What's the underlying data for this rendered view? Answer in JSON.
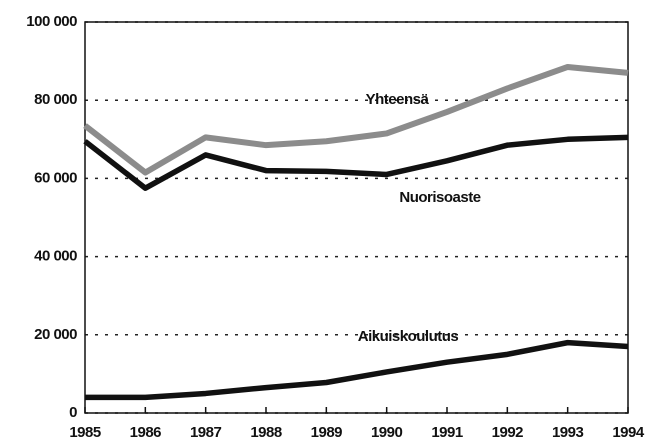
{
  "chart_data": {
    "type": "line",
    "x": [
      1985,
      1986,
      1987,
      1988,
      1989,
      1990,
      1991,
      1992,
      1993,
      1994
    ],
    "series": [
      {
        "name": "Yhteensä",
        "color": "#8c8c8c",
        "values": [
          73500,
          61500,
          70500,
          68500,
          69500,
          71500,
          77000,
          83000,
          88500,
          87000
        ]
      },
      {
        "name": "Nuorisoaste",
        "color": "#111111",
        "values": [
          69500,
          57500,
          66000,
          62000,
          61800,
          61000,
          64500,
          68500,
          70000,
          70500
        ]
      },
      {
        "name": "Aikuiskoulutus",
        "color": "#111111",
        "values": [
          4000,
          4000,
          5000,
          6500,
          7800,
          10500,
          13000,
          15000,
          18000,
          17000
        ]
      }
    ],
    "xlim": [
      1985,
      1994
    ],
    "xticks": [
      1985,
      1986,
      1987,
      1988,
      1989,
      1990,
      1991,
      1992,
      1993,
      1994
    ],
    "ylim": [
      0,
      100000
    ],
    "yticks": [
      0,
      {
        "value": 20000,
        "label": "20 000"
      },
      {
        "value": 40000,
        "label": "40 000"
      },
      {
        "value": 60000,
        "label": "60 000"
      },
      {
        "value": 80000,
        "label": "80 000"
      },
      {
        "value": 100000,
        "label": "100 000"
      }
    ],
    "grid": true
  }
}
